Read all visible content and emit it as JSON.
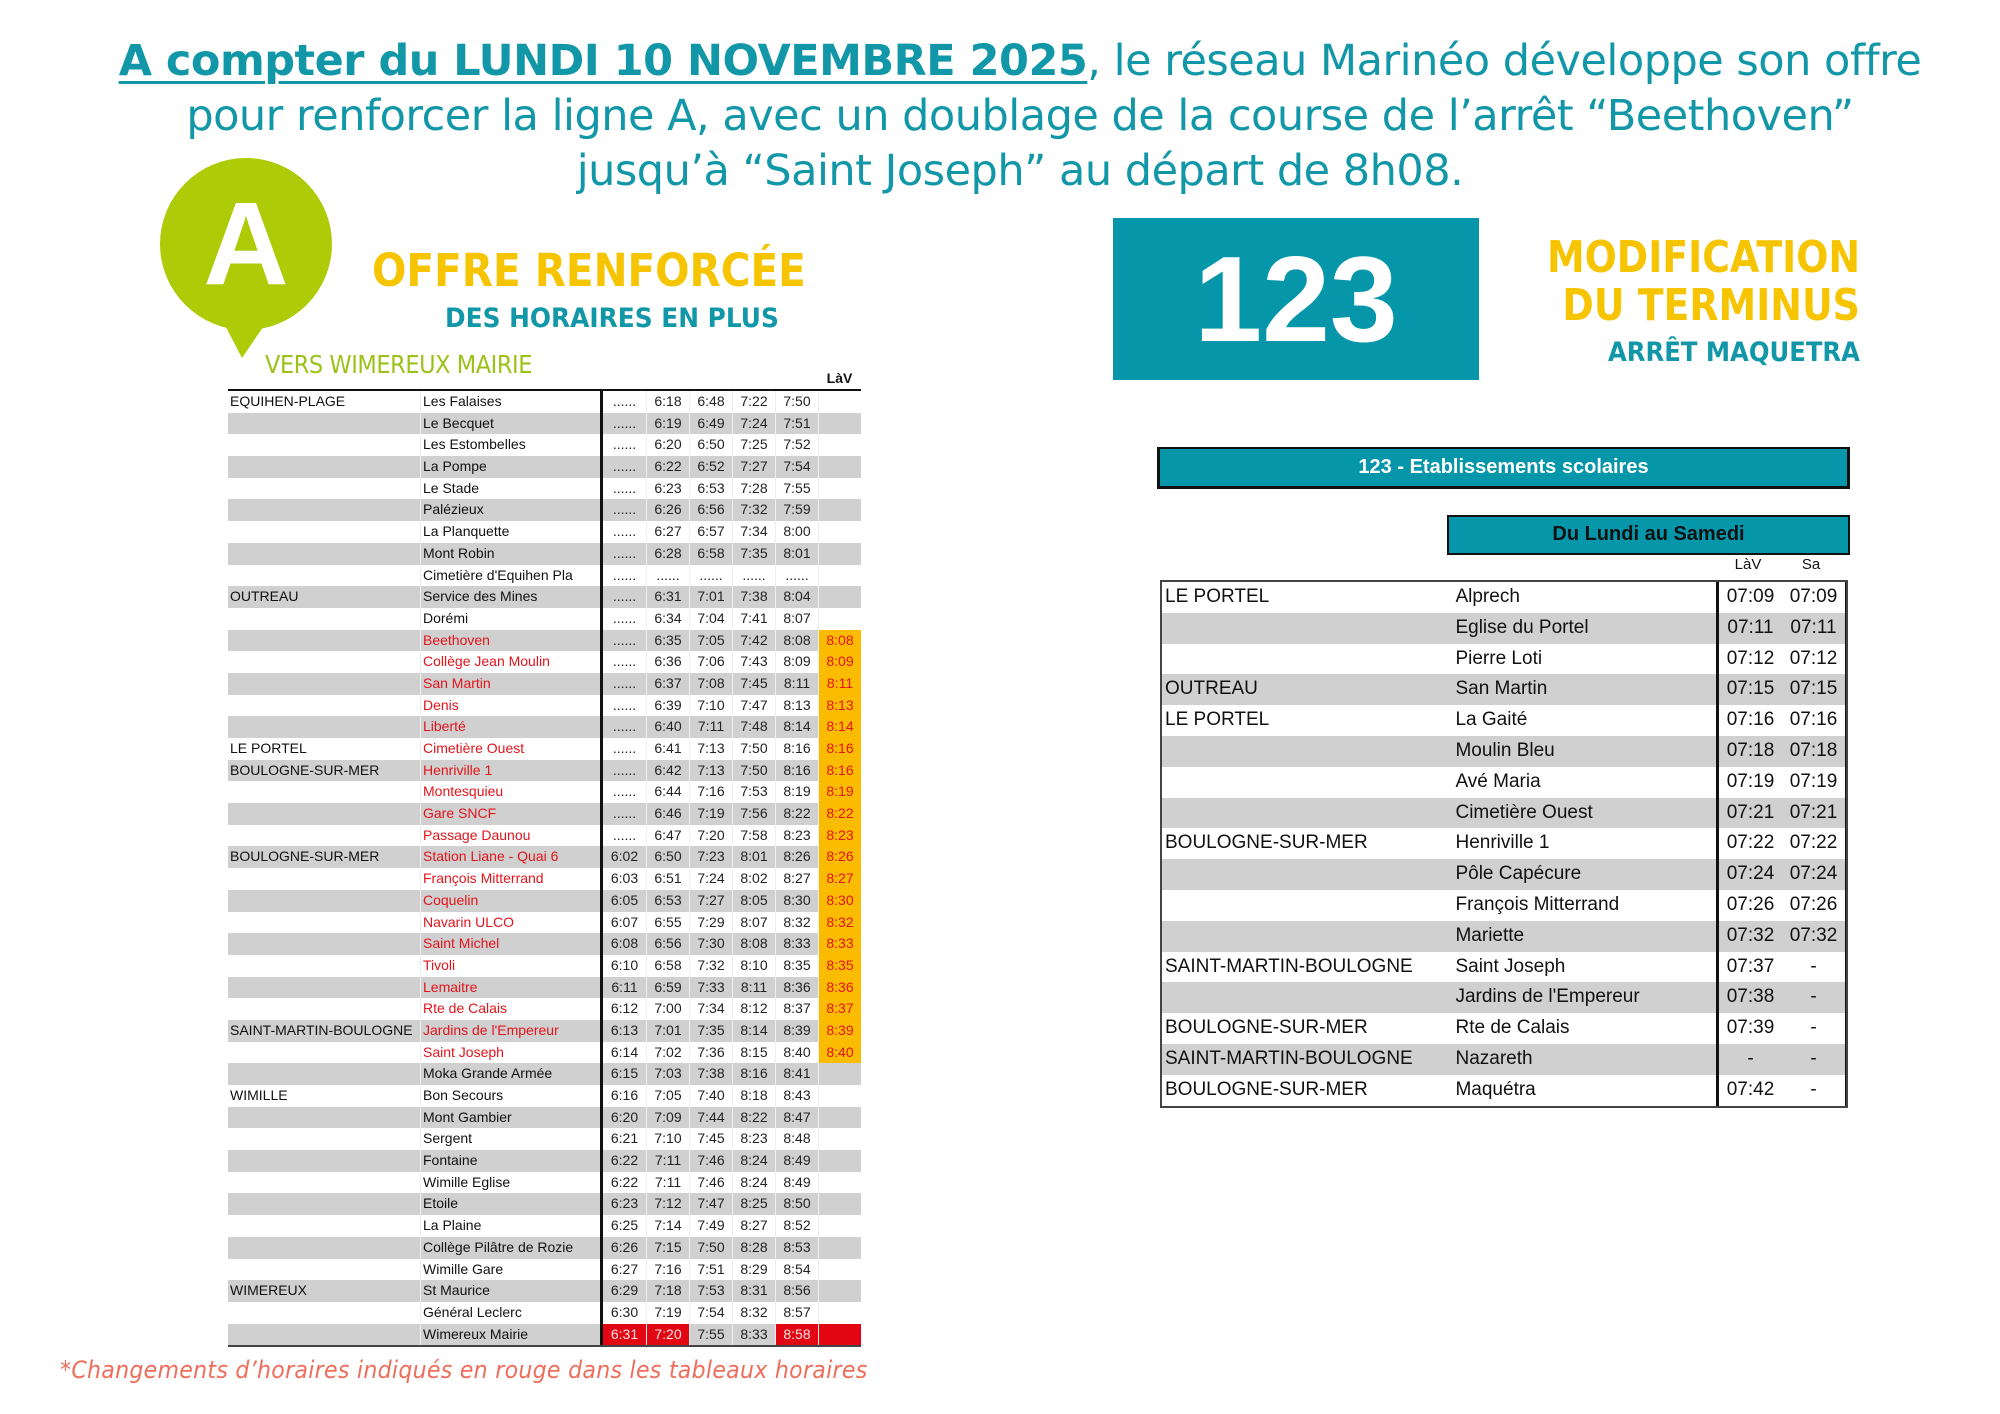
{
  "headline": {
    "strong": "A compter du LUNDI 10 NOVEMBRE 2025",
    "line1_rest": ", le réseau Marinéo développe son offre",
    "line2": "pour renforcer la ligne A, avec un doublage de la course de l’arrêt “Beethoven”",
    "line3": "jusqu’à “Saint Joseph” au départ de 8h08."
  },
  "line_a": {
    "letter": "A",
    "offer_title": "OFFRE RENFORCÉE",
    "offer_subtitle": "DES HORAIRES EN PLUS",
    "direction": "VERS WIMEREUX MAIRIE",
    "brand_color": "#9cc21a",
    "extra_column_header": "LàV",
    "rows": [
      {
        "town": "EQUIHEN-PLAGE",
        "stop": "Les Falaises",
        "red": false,
        "times": [
          "......",
          "6:18",
          "6:48",
          "7:22",
          "7:50",
          ""
        ]
      },
      {
        "town": "",
        "stop": "Le Becquet",
        "red": false,
        "times": [
          "......",
          "6:19",
          "6:49",
          "7:24",
          "7:51",
          ""
        ]
      },
      {
        "town": "",
        "stop": "Les Estombelles",
        "red": false,
        "times": [
          "......",
          "6:20",
          "6:50",
          "7:25",
          "7:52",
          ""
        ]
      },
      {
        "town": "",
        "stop": "La Pompe",
        "red": false,
        "times": [
          "......",
          "6:22",
          "6:52",
          "7:27",
          "7:54",
          ""
        ]
      },
      {
        "town": "",
        "stop": "Le Stade",
        "red": false,
        "times": [
          "......",
          "6:23",
          "6:53",
          "7:28",
          "7:55",
          ""
        ]
      },
      {
        "town": "",
        "stop": "Palézieux",
        "red": false,
        "times": [
          "......",
          "6:26",
          "6:56",
          "7:32",
          "7:59",
          ""
        ]
      },
      {
        "town": "",
        "stop": "La Planquette",
        "red": false,
        "times": [
          "......",
          "6:27",
          "6:57",
          "7:34",
          "8:00",
          ""
        ]
      },
      {
        "town": "",
        "stop": "Mont Robin",
        "red": false,
        "times": [
          "......",
          "6:28",
          "6:58",
          "7:35",
          "8:01",
          ""
        ]
      },
      {
        "town": "",
        "stop": "Cimetière d'Equihen Pla",
        "red": false,
        "times": [
          "......",
          "......",
          "......",
          "......",
          "......",
          ""
        ]
      },
      {
        "town": "OUTREAU",
        "stop": "Service des Mines",
        "red": false,
        "times": [
          "......",
          "6:31",
          "7:01",
          "7:38",
          "8:04",
          ""
        ]
      },
      {
        "town": "",
        "stop": "Dorémi",
        "red": false,
        "times": [
          "......",
          "6:34",
          "7:04",
          "7:41",
          "8:07",
          ""
        ]
      },
      {
        "town": "",
        "stop": "Beethoven",
        "red": true,
        "times": [
          "......",
          "6:35",
          "7:05",
          "7:42",
          "8:08",
          "8:08"
        ]
      },
      {
        "town": "",
        "stop": "Collège Jean Moulin",
        "red": true,
        "times": [
          "......",
          "6:36",
          "7:06",
          "7:43",
          "8:09",
          "8:09"
        ]
      },
      {
        "town": "",
        "stop": "San Martin",
        "red": true,
        "times": [
          "......",
          "6:37",
          "7:08",
          "7:45",
          "8:11",
          "8:11"
        ]
      },
      {
        "town": "",
        "stop": "Denis",
        "red": true,
        "times": [
          "......",
          "6:39",
          "7:10",
          "7:47",
          "8:13",
          "8:13"
        ]
      },
      {
        "town": "",
        "stop": "Liberté",
        "red": true,
        "times": [
          "......",
          "6:40",
          "7:11",
          "7:48",
          "8:14",
          "8:14"
        ]
      },
      {
        "town": "LE PORTEL",
        "stop": "Cimetière Ouest",
        "red": true,
        "times": [
          "......",
          "6:41",
          "7:13",
          "7:50",
          "8:16",
          "8:16"
        ]
      },
      {
        "town": "BOULOGNE-SUR-MER",
        "stop": "Henriville 1",
        "red": true,
        "times": [
          "......",
          "6:42",
          "7:13",
          "7:50",
          "8:16",
          "8:16"
        ]
      },
      {
        "town": "",
        "stop": "Montesquieu",
        "red": true,
        "times": [
          "......",
          "6:44",
          "7:16",
          "7:53",
          "8:19",
          "8:19"
        ]
      },
      {
        "town": "",
        "stop": "Gare SNCF",
        "red": true,
        "times": [
          "......",
          "6:46",
          "7:19",
          "7:56",
          "8:22",
          "8:22"
        ]
      },
      {
        "town": "",
        "stop": "Passage Daunou",
        "red": true,
        "times": [
          "......",
          "6:47",
          "7:20",
          "7:58",
          "8:23",
          "8:23"
        ]
      },
      {
        "town": "BOULOGNE-SUR-MER",
        "stop": "Station Liane - Quai 6",
        "red": true,
        "times": [
          "6:02",
          "6:50",
          "7:23",
          "8:01",
          "8:26",
          "8:26"
        ]
      },
      {
        "town": "",
        "stop": "François Mitterrand",
        "red": true,
        "times": [
          "6:03",
          "6:51",
          "7:24",
          "8:02",
          "8:27",
          "8:27"
        ]
      },
      {
        "town": "",
        "stop": "Coquelin",
        "red": true,
        "times": [
          "6:05",
          "6:53",
          "7:27",
          "8:05",
          "8:30",
          "8:30"
        ]
      },
      {
        "town": "",
        "stop": "Navarin ULCO",
        "red": true,
        "times": [
          "6:07",
          "6:55",
          "7:29",
          "8:07",
          "8:32",
          "8:32"
        ]
      },
      {
        "town": "",
        "stop": "Saint Michel",
        "red": true,
        "times": [
          "6:08",
          "6:56",
          "7:30",
          "8:08",
          "8:33",
          "8:33"
        ]
      },
      {
        "town": "",
        "stop": "Tivoli",
        "red": true,
        "times": [
          "6:10",
          "6:58",
          "7:32",
          "8:10",
          "8:35",
          "8:35"
        ]
      },
      {
        "town": "",
        "stop": "Lemaitre",
        "red": true,
        "times": [
          "6:11",
          "6:59",
          "7:33",
          "8:11",
          "8:36",
          "8:36"
        ]
      },
      {
        "town": "",
        "stop": "Rte de Calais",
        "red": true,
        "times": [
          "6:12",
          "7:00",
          "7:34",
          "8:12",
          "8:37",
          "8:37"
        ]
      },
      {
        "town": "SAINT-MARTIN-BOULOGNE",
        "stop": "Jardins de l'Empereur",
        "red": true,
        "times": [
          "6:13",
          "7:01",
          "7:35",
          "8:14",
          "8:39",
          "8:39"
        ]
      },
      {
        "town": "",
        "stop": "Saint Joseph",
        "red": true,
        "times": [
          "6:14",
          "7:02",
          "7:36",
          "8:15",
          "8:40",
          "8:40"
        ]
      },
      {
        "town": "",
        "stop": "Moka Grande Armée",
        "red": false,
        "times": [
          "6:15",
          "7:03",
          "7:38",
          "8:16",
          "8:41",
          ""
        ]
      },
      {
        "town": "WIMILLE",
        "stop": "Bon Secours",
        "red": false,
        "times": [
          "6:16",
          "7:05",
          "7:40",
          "8:18",
          "8:43",
          ""
        ]
      },
      {
        "town": "",
        "stop": "Mont Gambier",
        "red": false,
        "times": [
          "6:20",
          "7:09",
          "7:44",
          "8:22",
          "8:47",
          ""
        ]
      },
      {
        "town": "",
        "stop": "Sergent",
        "red": false,
        "times": [
          "6:21",
          "7:10",
          "7:45",
          "8:23",
          "8:48",
          ""
        ]
      },
      {
        "town": "",
        "stop": "Fontaine",
        "red": false,
        "times": [
          "6:22",
          "7:11",
          "7:46",
          "8:24",
          "8:49",
          ""
        ]
      },
      {
        "town": "",
        "stop": "Wimille Eglise",
        "red": false,
        "times": [
          "6:22",
          "7:11",
          "7:46",
          "8:24",
          "8:49",
          ""
        ]
      },
      {
        "town": "",
        "stop": "Etoile",
        "red": false,
        "times": [
          "6:23",
          "7:12",
          "7:47",
          "8:25",
          "8:50",
          ""
        ]
      },
      {
        "town": "",
        "stop": "La Plaine",
        "red": false,
        "times": [
          "6:25",
          "7:14",
          "7:49",
          "8:27",
          "8:52",
          ""
        ]
      },
      {
        "town": "",
        "stop": "Collège Pilâtre de Rozie",
        "red": false,
        "times": [
          "6:26",
          "7:15",
          "7:50",
          "8:28",
          "8:53",
          ""
        ]
      },
      {
        "town": "",
        "stop": "Wimille Gare",
        "red": false,
        "times": [
          "6:27",
          "7:16",
          "7:51",
          "8:29",
          "8:54",
          ""
        ]
      },
      {
        "town": "WIMEREUX",
        "stop": "St Maurice",
        "red": false,
        "times": [
          "6:29",
          "7:18",
          "7:53",
          "8:31",
          "8:56",
          ""
        ]
      },
      {
        "town": "",
        "stop": "Général Leclerc",
        "red": false,
        "times": [
          "6:30",
          "7:19",
          "7:54",
          "8:32",
          "8:57",
          ""
        ]
      },
      {
        "town": "",
        "stop": "Wimereux Mairie",
        "red": false,
        "times": [
          "6:31",
          "7:20",
          "7:55",
          "8:33",
          "8:58",
          ""
        ],
        "red_cells": [
          0,
          1,
          4,
          5
        ]
      }
    ]
  },
  "line_123": {
    "number": "123",
    "notice_line1": "MODIFICATION",
    "notice_line2": "DU TERMINUS",
    "notice_line3": "ARRÊT MAQUETRA",
    "table_title": "123 - Etablissements scolaires",
    "days_header": "Du Lundi au Samedi",
    "col_lav": "LàV",
    "col_sa": "Sa",
    "rows": [
      {
        "town": "LE PORTEL",
        "stop": "Alprech",
        "lav": "07:09",
        "sa": "07:09"
      },
      {
        "town": "",
        "stop": "Eglise du Portel",
        "lav": "07:11",
        "sa": "07:11"
      },
      {
        "town": "",
        "stop": "Pierre Loti",
        "lav": "07:12",
        "sa": "07:12"
      },
      {
        "town": "OUTREAU",
        "stop": "San Martin",
        "lav": "07:15",
        "sa": "07:15"
      },
      {
        "town": "LE PORTEL",
        "stop": "La Gaité",
        "lav": "07:16",
        "sa": "07:16"
      },
      {
        "town": "",
        "stop": "Moulin Bleu",
        "lav": "07:18",
        "sa": "07:18"
      },
      {
        "town": "",
        "stop": "Avé Maria",
        "lav": "07:19",
        "sa": "07:19"
      },
      {
        "town": "",
        "stop": "Cimetière Ouest",
        "lav": "07:21",
        "sa": "07:21"
      },
      {
        "town": "BOULOGNE-SUR-MER",
        "stop": "Henriville 1",
        "lav": "07:22",
        "sa": "07:22"
      },
      {
        "town": "",
        "stop": "Pôle Capécure",
        "lav": "07:24",
        "sa": "07:24"
      },
      {
        "town": "",
        "stop": "François Mitterrand",
        "lav": "07:26",
        "sa": "07:26"
      },
      {
        "town": "",
        "stop": "Mariette",
        "lav": "07:32",
        "sa": "07:32"
      },
      {
        "town": "SAINT-MARTIN-BOULOGNE",
        "stop": "Saint Joseph",
        "lav": "07:37",
        "sa": "-"
      },
      {
        "town": "",
        "stop": "Jardins de l'Empereur",
        "lav": "07:38",
        "sa": "-"
      },
      {
        "town": "BOULOGNE-SUR-MER",
        "stop": "Rte de Calais",
        "lav": "07:39",
        "sa": "-"
      },
      {
        "town": "SAINT-MARTIN-BOULOGNE",
        "stop": "Nazareth",
        "lav": "-",
        "sa": "-"
      },
      {
        "town": "BOULOGNE-SUR-MER",
        "stop": "Maquétra",
        "lav": "07:42",
        "sa": "-"
      }
    ]
  },
  "footnote": "*Changements d’horaires indiqués en rouge dans les tableaux horaires",
  "colors": {
    "teal": "#1197a7",
    "badge_teal": "#0696aa",
    "yellow": "#f6c400",
    "highlight_orange": "#fbbb00",
    "change_red": "#e3141b",
    "footnote_red": "#ee6d5b",
    "row_grey": "#d0d0d0"
  }
}
